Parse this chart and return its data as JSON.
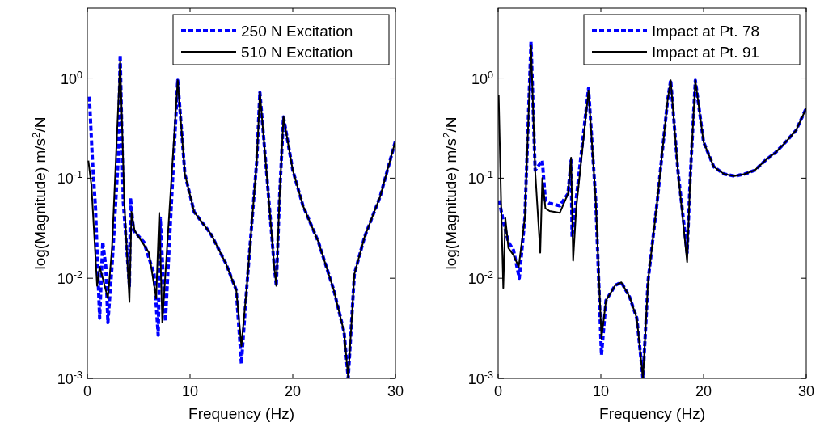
{
  "chart_data": [
    {
      "type": "line",
      "xlabel": "Frequency (Hz)",
      "ylabel": "log(Magnitude) m/s$^{2}$/N",
      "log": "y",
      "xlim": [
        0,
        30
      ],
      "xticks": [
        0,
        10,
        20,
        30
      ],
      "ylim": [
        0.001,
        5
      ],
      "yticks": [
        {
          "value": 0.001,
          "label": "10$^{-3}$"
        },
        {
          "value": 0.01,
          "label": "10$^{-2}$"
        },
        {
          "value": 0.1,
          "label": "10$^{-1}$"
        },
        {
          "value": 1,
          "label": "10$^{0}$"
        }
      ],
      "grid": false,
      "legend": "top right",
      "series": [
        {
          "name": "250 N Excitation",
          "color": "#0000ff",
          "line_style": "dashed",
          "x": [
            0.2,
            0.5,
            0.8,
            1.0,
            1.2,
            1.5,
            1.8,
            2.0,
            2.4,
            3.0,
            3.2,
            3.5,
            4.1,
            4.2,
            4.5,
            5.5,
            6.5,
            6.9,
            7.1,
            7.6,
            8.8,
            9.5,
            10.4,
            12,
            13.5,
            14.5,
            15.0,
            15.5,
            16.5,
            16.8,
            17.5,
            18.2,
            18.4,
            18.7,
            19.1,
            20,
            21,
            22.5,
            24,
            25,
            25.4,
            26,
            27,
            28.5,
            30
          ],
          "values": [
            0.65,
            0.15,
            0.05,
            0.013,
            0.004,
            0.023,
            0.013,
            0.0036,
            0.013,
            0.15,
            1.7,
            0.058,
            0.0084,
            0.064,
            0.03,
            0.023,
            0.011,
            0.0027,
            0.04,
            0.0037,
            0.95,
            0.11,
            0.046,
            0.028,
            0.014,
            0.0076,
            0.0014,
            0.0076,
            0.15,
            0.72,
            0.1,
            0.013,
            0.0084,
            0.06,
            0.41,
            0.12,
            0.053,
            0.023,
            0.0076,
            0.0029,
            0.001,
            0.011,
            0.026,
            0.065,
            0.235
          ]
        },
        {
          "name": "510 N Excitation",
          "color": "#000000",
          "line_style": "solid",
          "x": [
            0.1,
            0.4,
            0.95,
            1.2,
            1.5,
            2.0,
            2.4,
            3.2,
            3.6,
            4.1,
            4.3,
            4.6,
            6.0,
            6.7,
            7.0,
            7.3,
            8.8,
            9.5,
            10.4,
            12,
            13.5,
            14.5,
            15.0,
            15.5,
            16.5,
            16.8,
            17.5,
            18.2,
            18.4,
            18.7,
            19.1,
            20,
            21,
            22.5,
            24,
            25,
            25.4,
            26,
            27,
            28.5,
            30
          ],
          "values": [
            0.15,
            0.085,
            0.0084,
            0.013,
            0.01,
            0.0063,
            0.02,
            1.48,
            0.058,
            0.0058,
            0.046,
            0.03,
            0.018,
            0.0063,
            0.045,
            0.0036,
            0.95,
            0.11,
            0.046,
            0.028,
            0.014,
            0.0076,
            0.0021,
            0.0076,
            0.15,
            0.72,
            0.1,
            0.013,
            0.0084,
            0.06,
            0.41,
            0.12,
            0.053,
            0.023,
            0.0076,
            0.0029,
            0.001,
            0.011,
            0.026,
            0.065,
            0.235
          ]
        }
      ]
    },
    {
      "type": "line",
      "xlabel": "Frequency (Hz)",
      "ylabel": "log(Magnitude) m/s$^{2}$/N",
      "log": "y",
      "xlim": [
        0,
        30
      ],
      "xticks": [
        0,
        10,
        20,
        30
      ],
      "ylim": [
        0.001,
        5
      ],
      "yticks": [
        {
          "value": 0.001,
          "label": "10$^{-3}$"
        },
        {
          "value": 0.01,
          "label": "10$^{-2}$"
        },
        {
          "value": 0.1,
          "label": "10$^{-1}$"
        },
        {
          "value": 1,
          "label": "10$^{0}$"
        }
      ],
      "grid": false,
      "legend": "top right",
      "series": [
        {
          "name": "Impact at Pt. 78",
          "color": "#0000ff",
          "line_style": "dashed",
          "x": [
            0.1,
            0.5,
            1.0,
            1.5,
            2.06,
            2.6,
            3.2,
            3.6,
            4.3,
            4.6,
            5.0,
            6.0,
            6.8,
            7.1,
            7.2,
            7.5,
            8.8,
            9.5,
            10.06,
            10.5,
            11.4,
            12,
            12.8,
            13.5,
            14.1,
            14.6,
            15.5,
            16.5,
            16.8,
            17.5,
            18.4,
            18.7,
            19.2,
            20,
            21,
            22,
            23,
            24,
            25,
            26,
            27,
            28,
            29,
            30
          ],
          "values": [
            0.06,
            0.037,
            0.023,
            0.019,
            0.01,
            0.04,
            2.3,
            0.12,
            0.15,
            0.06,
            0.056,
            0.053,
            0.07,
            0.15,
            0.026,
            0.05,
            0.79,
            0.06,
            0.0017,
            0.006,
            0.0085,
            0.0091,
            0.0065,
            0.004,
            0.001,
            0.0095,
            0.06,
            0.6,
            0.95,
            0.12,
            0.018,
            0.1,
            0.95,
            0.23,
            0.13,
            0.11,
            0.105,
            0.11,
            0.12,
            0.15,
            0.18,
            0.23,
            0.3,
            0.5
          ]
        },
        {
          "name": "Impact at Pt. 91",
          "color": "#000000",
          "line_style": "solid",
          "x": [
            0.05,
            0.3,
            0.5,
            0.7,
            1.0,
            1.5,
            2.0,
            2.6,
            3.2,
            3.6,
            4.1,
            4.3,
            4.6,
            5.0,
            6.0,
            6.8,
            7.1,
            7.3,
            7.6,
            8.8,
            9.5,
            10.06,
            10.5,
            11.4,
            12,
            12.8,
            13.5,
            14.1,
            14.6,
            15.5,
            16.5,
            16.8,
            17.5,
            18.4,
            18.7,
            19.2,
            20,
            21,
            22,
            23,
            24,
            25,
            26,
            27,
            28,
            29,
            30
          ],
          "values": [
            0.68,
            0.05,
            0.008,
            0.04,
            0.02,
            0.017,
            0.013,
            0.04,
            2.1,
            0.12,
            0.018,
            0.1,
            0.05,
            0.047,
            0.045,
            0.07,
            0.16,
            0.015,
            0.05,
            0.75,
            0.06,
            0.0025,
            0.006,
            0.0085,
            0.0091,
            0.0065,
            0.004,
            0.001,
            0.0095,
            0.06,
            0.6,
            0.95,
            0.12,
            0.0145,
            0.1,
            0.95,
            0.23,
            0.13,
            0.11,
            0.105,
            0.11,
            0.12,
            0.15,
            0.18,
            0.23,
            0.3,
            0.5
          ]
        }
      ]
    }
  ]
}
